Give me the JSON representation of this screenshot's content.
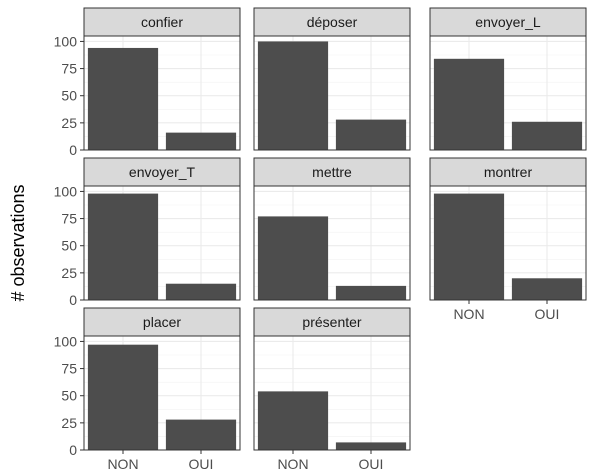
{
  "chart_data": {
    "type": "bar",
    "layout": "faceted",
    "ylabel": "# observations",
    "xlabel": "",
    "categories": [
      "NON",
      "OUI"
    ],
    "yticks": [
      0,
      25,
      50,
      75,
      100
    ],
    "ylim": [
      0,
      105
    ],
    "grid": true,
    "colors": {
      "bar": "#4d4d4d",
      "strip": "#d9d9d9",
      "border": "#333333",
      "grid": "#ebebeb"
    },
    "facets": [
      {
        "name": "confier",
        "values": [
          94,
          16
        ]
      },
      {
        "name": "déposer",
        "values": [
          100,
          28
        ]
      },
      {
        "name": "envoyer_L",
        "values": [
          84,
          26
        ]
      },
      {
        "name": "envoyer_T",
        "values": [
          98,
          15
        ]
      },
      {
        "name": "mettre",
        "values": [
          77,
          13
        ]
      },
      {
        "name": "montrer",
        "values": [
          98,
          20
        ]
      },
      {
        "name": "placer",
        "values": [
          97,
          28
        ]
      },
      {
        "name": "présenter",
        "values": [
          54,
          7
        ]
      }
    ]
  }
}
